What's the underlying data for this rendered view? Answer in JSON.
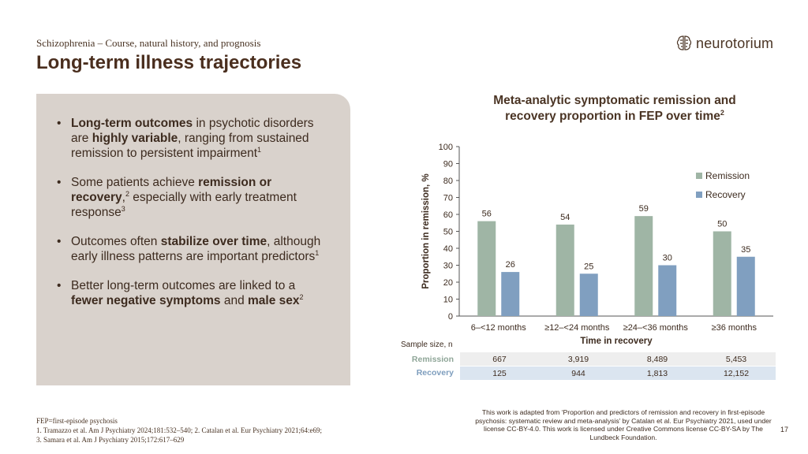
{
  "header": {
    "subtitle": "Schizophrenia – Course, natural history, and prognosis",
    "title": "Long-term illness trajectories"
  },
  "logo": {
    "text": "neurotorium",
    "icon": "brain-logo-icon"
  },
  "bullets": [
    {
      "parts": [
        {
          "t": "Long-term outcomes",
          "b": true
        },
        {
          "t": " in psychotic disorders are "
        },
        {
          "t": "highly variable",
          "b": true
        },
        {
          "t": ", ranging from sustained remission to persistent impairment"
        },
        {
          "t": "1",
          "sup": true
        }
      ]
    },
    {
      "parts": [
        {
          "t": "Some patients achieve "
        },
        {
          "t": "remission or recovery",
          "b": true
        },
        {
          "t": ","
        },
        {
          "t": "2",
          "sup": true
        },
        {
          "t": " especially with early treatment response"
        },
        {
          "t": "3",
          "sup": true
        }
      ]
    },
    {
      "parts": [
        {
          "t": "Outcomes often "
        },
        {
          "t": "stabilize over time",
          "b": true
        },
        {
          "t": ", although early illness patterns are important predictors"
        },
        {
          "t": "1",
          "sup": true
        }
      ]
    },
    {
      "parts": [
        {
          "t": "Better long-term outcomes are linked to a "
        },
        {
          "t": "fewer negative symptoms",
          "b": true
        },
        {
          "t": " and "
        },
        {
          "t": "male sex",
          "b": true
        },
        {
          "t": "2",
          "sup": true
        }
      ]
    }
  ],
  "chart": {
    "title_line1": "Meta-analytic symptomatic remission and",
    "title_line2": "recovery proportion in FEP over time",
    "title_sup": "2"
  },
  "chart_data": {
    "type": "bar",
    "categories": [
      "6–<12 months",
      "≥12–<24 months",
      "≥24–<36 months",
      "≥36 months"
    ],
    "series": [
      {
        "name": "Remission",
        "values": [
          56,
          54,
          59,
          50
        ],
        "color": "#9fb5a5"
      },
      {
        "name": "Recovery",
        "values": [
          26,
          25,
          30,
          35
        ],
        "color": "#809fc0"
      }
    ],
    "xlabel": "Time in recovery",
    "ylabel": "Proportion in remission, %",
    "ylim": [
      0,
      100
    ],
    "yticks": [
      0,
      10,
      20,
      30,
      40,
      50,
      60,
      70,
      80,
      90,
      100
    ],
    "grid": false,
    "legend": "right"
  },
  "sample_size": {
    "label": "Sample size, n",
    "rows": [
      {
        "name": "Remission",
        "values": [
          "667",
          "3,919",
          "8,489",
          "5,453"
        ]
      },
      {
        "name": "Recovery",
        "values": [
          "125",
          "944",
          "1,813",
          "12,152"
        ]
      }
    ]
  },
  "footnotes": {
    "abbrev": "FEP=first-episode psychosis",
    "refs": "1. Tramazzo et al. Am J Psychiatry 2024;181:532–540; 2. Catalan et al. Eur Psychiatry 2021;64:e69;",
    "refs2": "3. Samara et al. Am J Psychiatry 2015;172:617–629"
  },
  "credit": "This work is adapted from ‘Proportion and predictors of remission and recovery in first-episode psychosis: systematic review and meta-analysis’ by Catalan et al. Eur Psychiatry 2021, used under license CC-BY-4.0. This work is licensed under Creative Commons license CC-BY-SA by The Lundbeck Foundation.",
  "page_number": "17"
}
